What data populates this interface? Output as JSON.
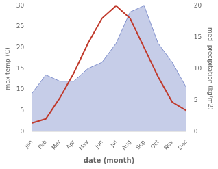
{
  "chart_data": {
    "type": "line",
    "categories": [
      "Jan",
      "Feb",
      "Mar",
      "Apr",
      "May",
      "Jun",
      "Jul",
      "Aug",
      "Sep",
      "Oct",
      "Nov",
      "Dec"
    ],
    "series": [
      {
        "type": "line",
        "color": "#c0392b",
        "axis": "y",
        "values": [
          2,
          3,
          8,
          14,
          21,
          27,
          30,
          27,
          20,
          13,
          7,
          5
        ]
      },
      {
        "type": "area",
        "color": "#8090cc",
        "axis": "y2",
        "values": [
          6,
          9,
          8,
          8,
          10,
          11,
          14,
          19,
          20,
          14,
          11,
          7
        ]
      }
    ],
    "xlabel": "date (month)",
    "ylabel": "max temp (C)",
    "y2label": "med. precipitation (kg/m2)",
    "ylim": [
      0,
      30
    ],
    "yticks": [
      0,
      5,
      10,
      15,
      20,
      25,
      30
    ],
    "y2lim": [
      0,
      20
    ],
    "y2ticks": [
      0,
      5,
      10,
      15,
      20
    ],
    "grid": false
  }
}
